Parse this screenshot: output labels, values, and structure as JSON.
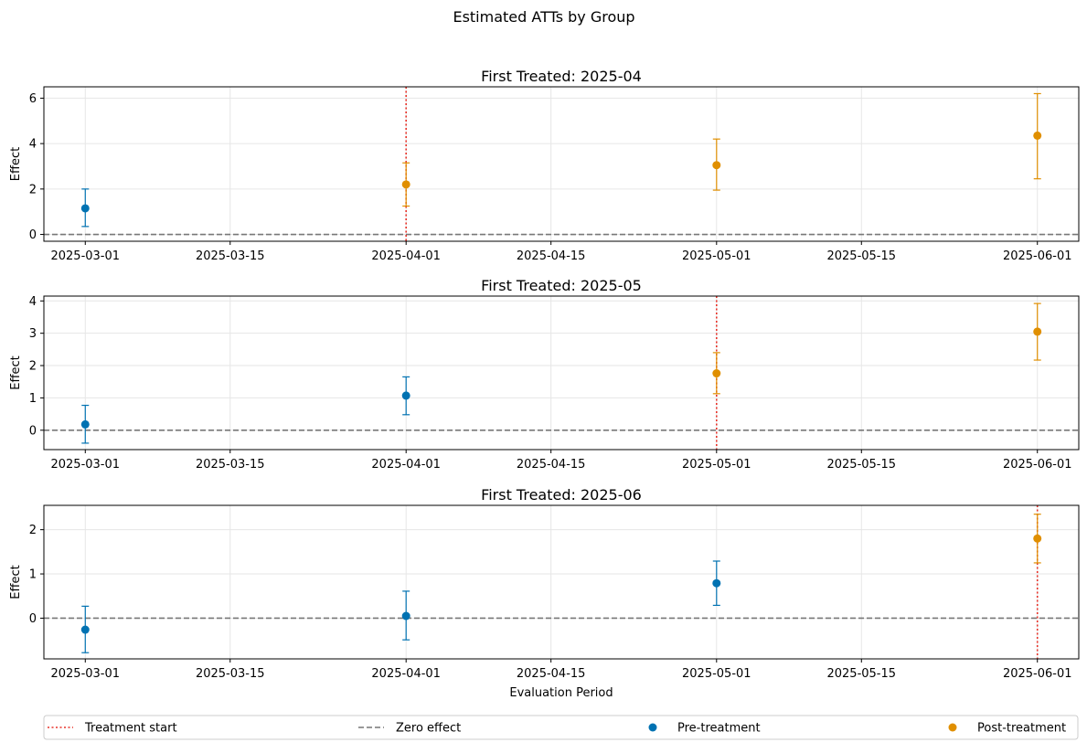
{
  "figure": {
    "suptitle": "Estimated ATTs by Group",
    "xlabel": "Evaluation Period",
    "ylabel": "Effect"
  },
  "colors": {
    "pre": "#0072b2",
    "post": "#e08f00",
    "treatment_line": "#e8332a",
    "zero_line": "#777777",
    "grid": "#e6e6e6"
  },
  "legend": {
    "placement": "bottom",
    "entries": [
      {
        "label": "Treatment start",
        "kind": "treatment_line"
      },
      {
        "label": "Zero effect",
        "kind": "zero_line"
      },
      {
        "label": "Pre-treatment",
        "kind": "pre"
      },
      {
        "label": "Post-treatment",
        "kind": "post"
      }
    ]
  },
  "chart_data": [
    {
      "type": "scatter",
      "title": "First Treated: 2025-04",
      "ylabel": "Effect",
      "xlabel": "",
      "xticks": [
        "2025-03-01",
        "2025-03-15",
        "2025-04-01",
        "2025-04-15",
        "2025-05-01",
        "2025-05-15",
        "2025-06-01"
      ],
      "yticks": [
        0,
        2,
        4,
        6
      ],
      "ylim": [
        -0.3,
        6.5
      ],
      "treatment_start": "2025-04-01",
      "grid": true,
      "points": [
        {
          "x": "2025-03-01",
          "y": 1.15,
          "lo": 0.35,
          "hi": 2.0,
          "phase": "pre"
        },
        {
          "x": "2025-04-01",
          "y": 2.2,
          "lo": 1.25,
          "hi": 3.15,
          "phase": "post"
        },
        {
          "x": "2025-05-01",
          "y": 3.05,
          "lo": 1.95,
          "hi": 4.2,
          "phase": "post"
        },
        {
          "x": "2025-06-01",
          "y": 4.35,
          "lo": 2.45,
          "hi": 6.2,
          "phase": "post"
        }
      ]
    },
    {
      "type": "scatter",
      "title": "First Treated: 2025-05",
      "ylabel": "Effect",
      "xlabel": "",
      "xticks": [
        "2025-03-01",
        "2025-03-15",
        "2025-04-01",
        "2025-04-15",
        "2025-05-01",
        "2025-05-15",
        "2025-06-01"
      ],
      "yticks": [
        0,
        1,
        2,
        3,
        4
      ],
      "ylim": [
        -0.6,
        4.15
      ],
      "treatment_start": "2025-05-01",
      "grid": true,
      "points": [
        {
          "x": "2025-03-01",
          "y": 0.18,
          "lo": -0.4,
          "hi": 0.77,
          "phase": "pre"
        },
        {
          "x": "2025-04-01",
          "y": 1.07,
          "lo": 0.48,
          "hi": 1.65,
          "phase": "pre"
        },
        {
          "x": "2025-05-01",
          "y": 1.76,
          "lo": 1.13,
          "hi": 2.4,
          "phase": "post"
        },
        {
          "x": "2025-06-01",
          "y": 3.05,
          "lo": 2.17,
          "hi": 3.92,
          "phase": "post"
        }
      ]
    },
    {
      "type": "scatter",
      "title": "First Treated: 2025-06",
      "ylabel": "Effect",
      "xlabel": "Evaluation Period",
      "xticks": [
        "2025-03-01",
        "2025-03-15",
        "2025-04-01",
        "2025-04-15",
        "2025-05-01",
        "2025-05-15",
        "2025-06-01"
      ],
      "yticks": [
        0,
        1,
        2
      ],
      "ylim": [
        -0.92,
        2.55
      ],
      "treatment_start": "2025-06-01",
      "grid": true,
      "points": [
        {
          "x": "2025-03-01",
          "y": -0.26,
          "lo": -0.78,
          "hi": 0.27,
          "phase": "pre"
        },
        {
          "x": "2025-04-01",
          "y": 0.05,
          "lo": -0.49,
          "hi": 0.61,
          "phase": "pre"
        },
        {
          "x": "2025-05-01",
          "y": 0.79,
          "lo": 0.29,
          "hi": 1.29,
          "phase": "pre"
        },
        {
          "x": "2025-06-01",
          "y": 1.8,
          "lo": 1.25,
          "hi": 2.35,
          "phase": "post"
        }
      ]
    }
  ]
}
